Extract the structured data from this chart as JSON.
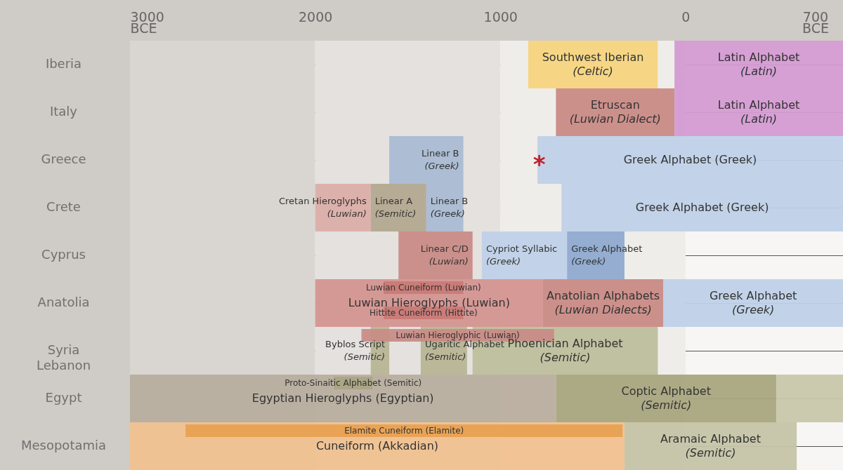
{
  "chart_data": {
    "type": "bar",
    "orientation": "horizontal",
    "grid": "y",
    "categories": [
      "Iberia",
      "Italy",
      "Greece",
      "Crete",
      "Cyprus",
      "Anatolia",
      "Syria Lebanon",
      "Egypt",
      "Mesopotamia"
    ],
    "xlim": [
      -3000,
      850
    ],
    "xticks": [
      {
        "value": -3000,
        "label": "3000 BCE"
      },
      {
        "value": -2000,
        "label": "2000"
      },
      {
        "value": -1000,
        "label": "1000"
      },
      0,
      {
        "value": 700,
        "label": "700 BCE"
      }
    ],
    "bands": [
      {
        "axis": "x",
        "from": -3000,
        "to": -2000,
        "color": "#d9d5d0"
      },
      {
        "axis": "x",
        "from": -2000,
        "to": -1000,
        "color": "#e4e1de"
      },
      {
        "axis": "x",
        "from": -1000,
        "to": 0,
        "color": "#efedea"
      }
    ],
    "annotations": [
      {
        "text": "*",
        "x": -790,
        "y": "Greece"
      }
    ],
    "series": [
      {
        "name": "Southwest Iberian (Celtic)",
        "color": "#f6d57f",
        "base": [
          -850,
          null,
          null,
          null,
          null,
          null,
          null,
          null,
          null
        ],
        "values": [
          700,
          null,
          null,
          null,
          null,
          null,
          null,
          null,
          null
        ]
      },
      {
        "name": "Latin Alphabet (Latin)",
        "color": "#d49bd3",
        "base": [
          -60,
          null,
          null,
          null,
          null,
          null,
          null,
          null,
          null
        ],
        "values": [
          910,
          null,
          null,
          null,
          null,
          null,
          null,
          null,
          null
        ]
      },
      {
        "name": "Etruscan (Luwian Dialect)",
        "color": "#c98b86",
        "base": [
          null,
          -700,
          null,
          null,
          null,
          null,
          null,
          null,
          null
        ],
        "values": [
          null,
          640,
          null,
          null,
          null,
          null,
          null,
          null,
          null
        ]
      },
      {
        "name": "Latin Alphabet (Latin)",
        "color": "#d49bd3",
        "base": [
          null,
          -60,
          null,
          null,
          null,
          null,
          null,
          null,
          null
        ],
        "values": [
          null,
          910,
          null,
          null,
          null,
          null,
          null,
          null,
          null
        ]
      },
      {
        "name": "Linear B (Greek)",
        "color": "#a9bbd3",
        "base": [
          null,
          null,
          -1600,
          null,
          null,
          null,
          null,
          null,
          null
        ],
        "values": [
          null,
          null,
          400,
          null,
          null,
          null,
          null,
          null,
          null
        ]
      },
      {
        "name": "Greek Alphabet (Greek)",
        "color": "#bfd1e8",
        "base": [
          null,
          null,
          -800,
          null,
          null,
          null,
          null,
          null,
          null
        ],
        "values": [
          null,
          null,
          1650,
          null,
          null,
          null,
          null,
          null,
          null
        ]
      },
      {
        "name": "Cretan Hieroglyphs (Luwian)",
        "color": "#dcaea8",
        "base": [
          null,
          null,
          null,
          -2000,
          null,
          null,
          null,
          null,
          null
        ],
        "values": [
          null,
          null,
          null,
          300,
          null,
          null,
          null,
          null,
          null
        ]
      },
      {
        "name": "Linear A (Semitic)",
        "color": "#b3a88f",
        "base": [
          null,
          null,
          null,
          -1700,
          null,
          null,
          null,
          null,
          null
        ],
        "values": [
          null,
          null,
          null,
          300,
          null,
          null,
          null,
          null,
          null
        ]
      },
      {
        "name": "Linear B (Greek)",
        "color": "#a9bbd3",
        "base": [
          null,
          null,
          null,
          -1400,
          null,
          null,
          null,
          null,
          null
        ],
        "values": [
          null,
          null,
          null,
          200,
          null,
          null,
          null,
          null,
          null
        ]
      },
      {
        "name": "Greek Alphabet (Greek)",
        "color": "#bfd1e8",
        "base": [
          null,
          null,
          null,
          -670,
          null,
          null,
          null,
          null,
          null
        ],
        "values": [
          null,
          null,
          null,
          1520,
          null,
          null,
          null,
          null,
          null
        ]
      },
      {
        "name": "Linear C/D (Luwian)",
        "color": "#c98b86",
        "base": [
          null,
          null,
          null,
          null,
          -1550,
          null,
          null,
          null,
          null
        ],
        "values": [
          null,
          null,
          null,
          null,
          400,
          null,
          null,
          null,
          null
        ]
      },
      {
        "name": "Cypriot Syllabic (Greek)",
        "color": "#bfd1e8",
        "base": [
          null,
          null,
          null,
          null,
          -1100,
          null,
          null,
          null,
          null
        ],
        "values": [
          null,
          null,
          null,
          null,
          460,
          null,
          null,
          null,
          null
        ]
      },
      {
        "name": "Greek Alphabet (Greek)",
        "color": "#8eaad0",
        "base": [
          null,
          null,
          null,
          null,
          -640,
          null,
          null,
          null,
          null
        ],
        "values": [
          null,
          null,
          null,
          null,
          310,
          null,
          null,
          null,
          null
        ]
      },
      {
        "name": "Luwian Hieroglyphs (Luwian)",
        "color": "#d49590",
        "base": [
          null,
          null,
          null,
          null,
          null,
          -2000,
          null,
          null,
          null
        ],
        "values": [
          null,
          null,
          null,
          null,
          null,
          1230,
          null,
          null,
          null
        ]
      },
      {
        "name": "Luwian Cuneiform (Luwian)",
        "color": "#c97a75",
        "base": [
          null,
          null,
          null,
          null,
          null,
          -1630,
          null,
          null,
          null
        ],
        "values": [
          null,
          null,
          null,
          null,
          null,
          430,
          null,
          null,
          null
        ]
      },
      {
        "name": "Hittite Cuneiform (Hittite)",
        "color": "#c97a75",
        "base": [
          null,
          null,
          null,
          null,
          null,
          -1630,
          null,
          null,
          null
        ],
        "values": [
          null,
          null,
          null,
          null,
          null,
          430,
          null,
          null,
          null
        ]
      },
      {
        "name": "Anatolian Alphabets (Luwian Dialects)",
        "color": "#c98b86",
        "base": [
          null,
          null,
          null,
          null,
          null,
          -770,
          null,
          null,
          null
        ],
        "values": [
          null,
          null,
          null,
          null,
          null,
          650,
          null,
          null,
          null
        ]
      },
      {
        "name": "Greek Alphabet (Greek)",
        "color": "#bfd1e8",
        "base": [
          null,
          null,
          null,
          null,
          null,
          -120,
          null,
          null,
          null
        ],
        "values": [
          null,
          null,
          null,
          null,
          null,
          970,
          null,
          null,
          null
        ]
      },
      {
        "name": "Byblos Script (Semitic)",
        "color": "#b7b593",
        "base": [
          null,
          null,
          null,
          null,
          null,
          null,
          -1700,
          null,
          null
        ],
        "values": [
          null,
          null,
          null,
          null,
          null,
          null,
          100,
          null,
          null
        ]
      },
      {
        "name": "Ugaritic Alphabet (Semitic)",
        "color": "#b7b593",
        "base": [
          null,
          null,
          null,
          null,
          null,
          null,
          -1430,
          null,
          null
        ],
        "values": [
          null,
          null,
          null,
          null,
          null,
          null,
          250,
          null,
          null
        ]
      },
      {
        "name": "Phoenician Alphabet (Semitic)",
        "color": "#bdbf9c",
        "base": [
          null,
          null,
          null,
          null,
          null,
          null,
          -1150,
          null,
          null
        ],
        "values": [
          null,
          null,
          null,
          null,
          null,
          null,
          1000,
          null,
          null
        ]
      },
      {
        "name": "Luwian Hieroglyphic (Luwian)",
        "color": "#c98b86",
        "base": [
          null,
          null,
          null,
          null,
          null,
          null,
          -1750,
          null,
          null
        ],
        "values": [
          null,
          null,
          null,
          null,
          null,
          null,
          1040,
          null,
          null
        ]
      },
      {
        "name": "Egyptian Hieroglyphs (Egyptian)",
        "color": "#b8ae9f",
        "base": [
          null,
          null,
          null,
          null,
          null,
          null,
          null,
          -3000,
          null
        ],
        "values": [
          null,
          null,
          null,
          null,
          null,
          null,
          null,
          2300,
          null
        ]
      },
      {
        "name": "Proto-Sinaitic Alphabet (Semitic)",
        "color": "#a9a582",
        "base": [
          null,
          null,
          null,
          null,
          null,
          null,
          null,
          -1900,
          null
        ],
        "values": [
          null,
          null,
          null,
          null,
          null,
          null,
          null,
          210,
          null
        ]
      },
      {
        "name": "Coptic Alphabet (Semitic)",
        "color": "#a8a67f",
        "base": [
          null,
          null,
          null,
          null,
          null,
          null,
          null,
          -700,
          null
        ],
        "values": [
          null,
          null,
          null,
          null,
          null,
          null,
          null,
          1190,
          null
        ]
      },
      {
        "color": "#c8c7aa",
        "base": [
          null,
          null,
          null,
          null,
          null,
          null,
          null,
          490,
          null
        ],
        "values": [
          null,
          null,
          null,
          null,
          null,
          null,
          null,
          360,
          null
        ]
      },
      {
        "name": "Cuneiform (Akkadian)",
        "color": "#f0c190",
        "base": [
          null,
          null,
          null,
          null,
          null,
          null,
          null,
          null,
          -3000
        ],
        "values": [
          null,
          null,
          null,
          null,
          null,
          null,
          null,
          null,
          2670
        ]
      },
      {
        "name": "Elamite Cuneiform (Elamite)",
        "color": "#e8a150",
        "base": [
          null,
          null,
          null,
          null,
          null,
          null,
          null,
          null,
          -2700
        ],
        "values": [
          null,
          null,
          null,
          null,
          null,
          null,
          null,
          null,
          2360
        ]
      },
      {
        "name": "Aramaic Alphabet (Semitic)",
        "color": "#c5c4a6",
        "base": [
          null,
          null,
          null,
          null,
          null,
          null,
          null,
          null,
          -330
        ],
        "values": [
          null,
          null,
          null,
          null,
          null,
          null,
          null,
          null,
          930
        ]
      }
    ]
  }
}
